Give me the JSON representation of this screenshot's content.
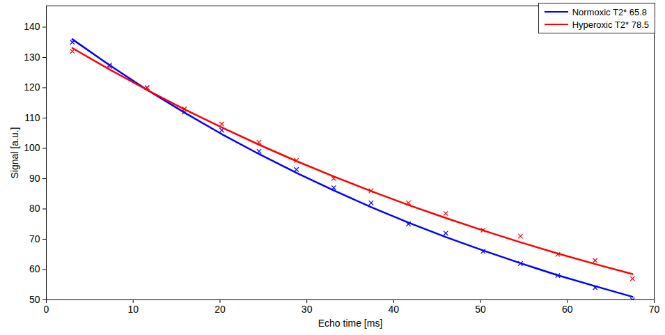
{
  "chart_data": {
    "type": "line",
    "x_label": "Echo time [ms]",
    "y_label": "Signal [a.u.]",
    "x": [
      3.0,
      7.3,
      11.6,
      15.9,
      20.2,
      24.5,
      28.8,
      33.1,
      37.4,
      41.7,
      46.0,
      50.3,
      54.6,
      58.9,
      63.2,
      67.5
    ],
    "xlim": [
      0,
      70
    ],
    "xticks": [
      0,
      10,
      20,
      30,
      40,
      50,
      60,
      70
    ],
    "ylim": [
      50,
      147
    ],
    "yticks": [
      50,
      60,
      70,
      80,
      90,
      100,
      110,
      120,
      130,
      140
    ],
    "grid": false,
    "legend": "upper right",
    "series": [
      {
        "name": "Normoxic T2* 65.8",
        "color": "#0000ff",
        "marker": "x",
        "line_style": "solid",
        "values": [
          136.0,
          127.4,
          119.3,
          111.8,
          104.7,
          98.1,
          91.9,
          86.1,
          80.6,
          75.5,
          70.7,
          66.3,
          62.1,
          58.1,
          54.5,
          51.0
        ],
        "measured": [
          135,
          127.5,
          120,
          112,
          106,
          99,
          93,
          87,
          82,
          75,
          72,
          66,
          62,
          58,
          54,
          50
        ]
      },
      {
        "name": "Hyperoxic T2* 78.5",
        "color": "#ff0000",
        "marker": "x",
        "line_style": "solid",
        "values": [
          133.1,
          126.0,
          119.3,
          112.9,
          106.9,
          101.2,
          95.8,
          90.7,
          85.9,
          81.3,
          77.0,
          72.9,
          69.0,
          65.3,
          61.8,
          58.5
        ],
        "measured": [
          132,
          127,
          120,
          113,
          108,
          102,
          96,
          90,
          86,
          82,
          78.5,
          73,
          71,
          65,
          63,
          57
        ]
      }
    ]
  }
}
